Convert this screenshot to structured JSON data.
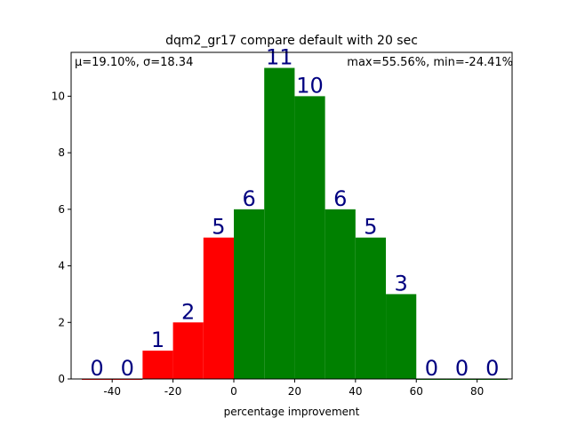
{
  "chart_data": {
    "type": "histogram",
    "title": "dqm2_gr17 compare default with 20 sec",
    "xlabel": "percentage improvement",
    "annotations": [
      "μ=19.10%, σ=18.34",
      "max=55.56%, min=-24.41%"
    ],
    "bins": [
      -50,
      -40,
      -30,
      -20,
      -10,
      0,
      10,
      20,
      30,
      40,
      50,
      60,
      70,
      80,
      90
    ],
    "values": [
      0,
      0,
      1,
      2,
      5,
      6,
      11,
      10,
      6,
      5,
      3,
      0,
      0,
      0
    ],
    "colors": [
      "#ff0000",
      "#ff0000",
      "#ff0000",
      "#ff0000",
      "#ff0000",
      "#008000",
      "#008000",
      "#008000",
      "#008000",
      "#008000",
      "#008000",
      "#008000",
      "#008000",
      "#008000"
    ],
    "label_color": "#000080",
    "xlim": [
      -53.5,
      91.5
    ],
    "ylim": [
      0,
      11.55
    ],
    "xticks": [
      -40,
      -20,
      0,
      20,
      40,
      60,
      80
    ],
    "yticks": [
      0,
      2,
      4,
      6,
      8,
      10
    ]
  }
}
